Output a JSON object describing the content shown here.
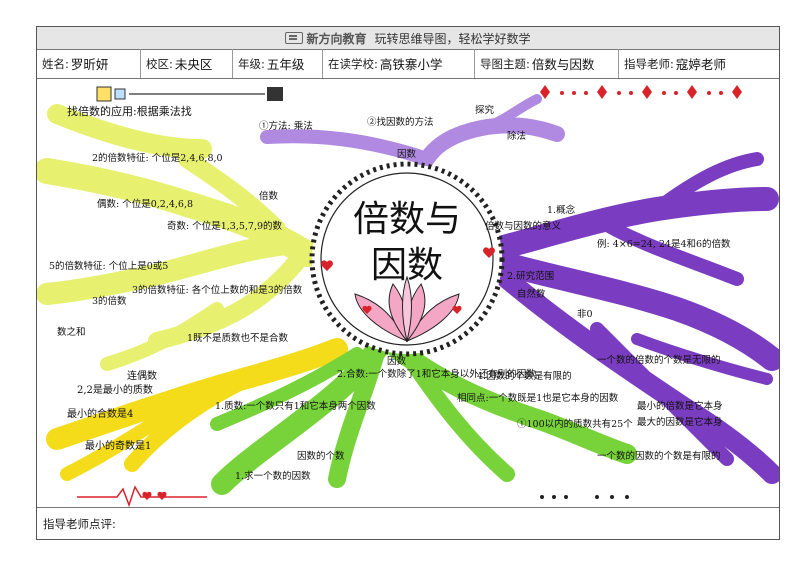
{
  "header": {
    "brand": "新方向教育",
    "slogan": "玩转思维导图，轻松学好数学"
  },
  "info": {
    "name_label": "姓名:",
    "name_value": "罗昕妍",
    "district_label": "校区:",
    "district_value": "未央区",
    "grade_label": "年级:",
    "grade_value": "五年级",
    "school_label": "在读学校:",
    "school_value": "高铁寨小学",
    "topic_label": "导图主题:",
    "topic_value": "倍数与因数",
    "teacher_label": "指导老师:",
    "teacher_value": "寇婷老师"
  },
  "mindmap": {
    "center_line1": "倍数与",
    "center_line2": "因数",
    "yellow_branch": {
      "main": "找倍数的应用:根据乘法找",
      "notes": [
        "2的倍数特征: 个位是2,4,6,8,0",
        "偶数: 个位是0,2,4,6,8",
        "奇数: 个位是1,3,5,7,9的数",
        "5的倍数特征: 个位上是0或5",
        "3的倍数特征: 各个位上数的和是3的倍数",
        "3的倍数",
        "倍数",
        "数之和",
        "1既不是质数也不是合数"
      ]
    },
    "gold_branch": {
      "notes": [
        "2,2是最小的质数",
        "最小的合数是4",
        "最小的奇数是1",
        "连偶数"
      ]
    },
    "green_branch": {
      "notes": [
        "1.质数:一个数只有1和它本身两个因数",
        "2.合数:一个数除了1和它本身以外还有别的因数",
        "1.求一个数的因数",
        "4.因数的个数是有限的",
        "①100以内的质数共有25个",
        "相同点:一个数既是1也是它本身的因数",
        "因数",
        "因数的个数"
      ]
    },
    "purple_top": {
      "notes": [
        "①方法: 乘法",
        "②找因数的方法",
        "因数",
        "探究",
        "除法"
      ]
    },
    "purple_right": {
      "notes": [
        "倍数与因数的意义",
        "1.概念",
        "例: 4×6=24, 24是4和6的倍数",
        "2.研究范围",
        "自然数",
        "非0",
        "一个数的倍数的个数是无限的",
        "最小的倍数是它本身",
        "最大的因数是它本身",
        "一个数的因数的个数是有限的"
      ]
    }
  },
  "footer": {
    "comment_label": "指导老师点评:"
  },
  "colors": {
    "yellow": "#e8f070",
    "gold": "#f4dc1a",
    "green": "#78d23a",
    "purple": "#7a3cc0",
    "lavender": "#b08ae0",
    "lotus": "#f3a7c4",
    "red": "#d8232a"
  }
}
